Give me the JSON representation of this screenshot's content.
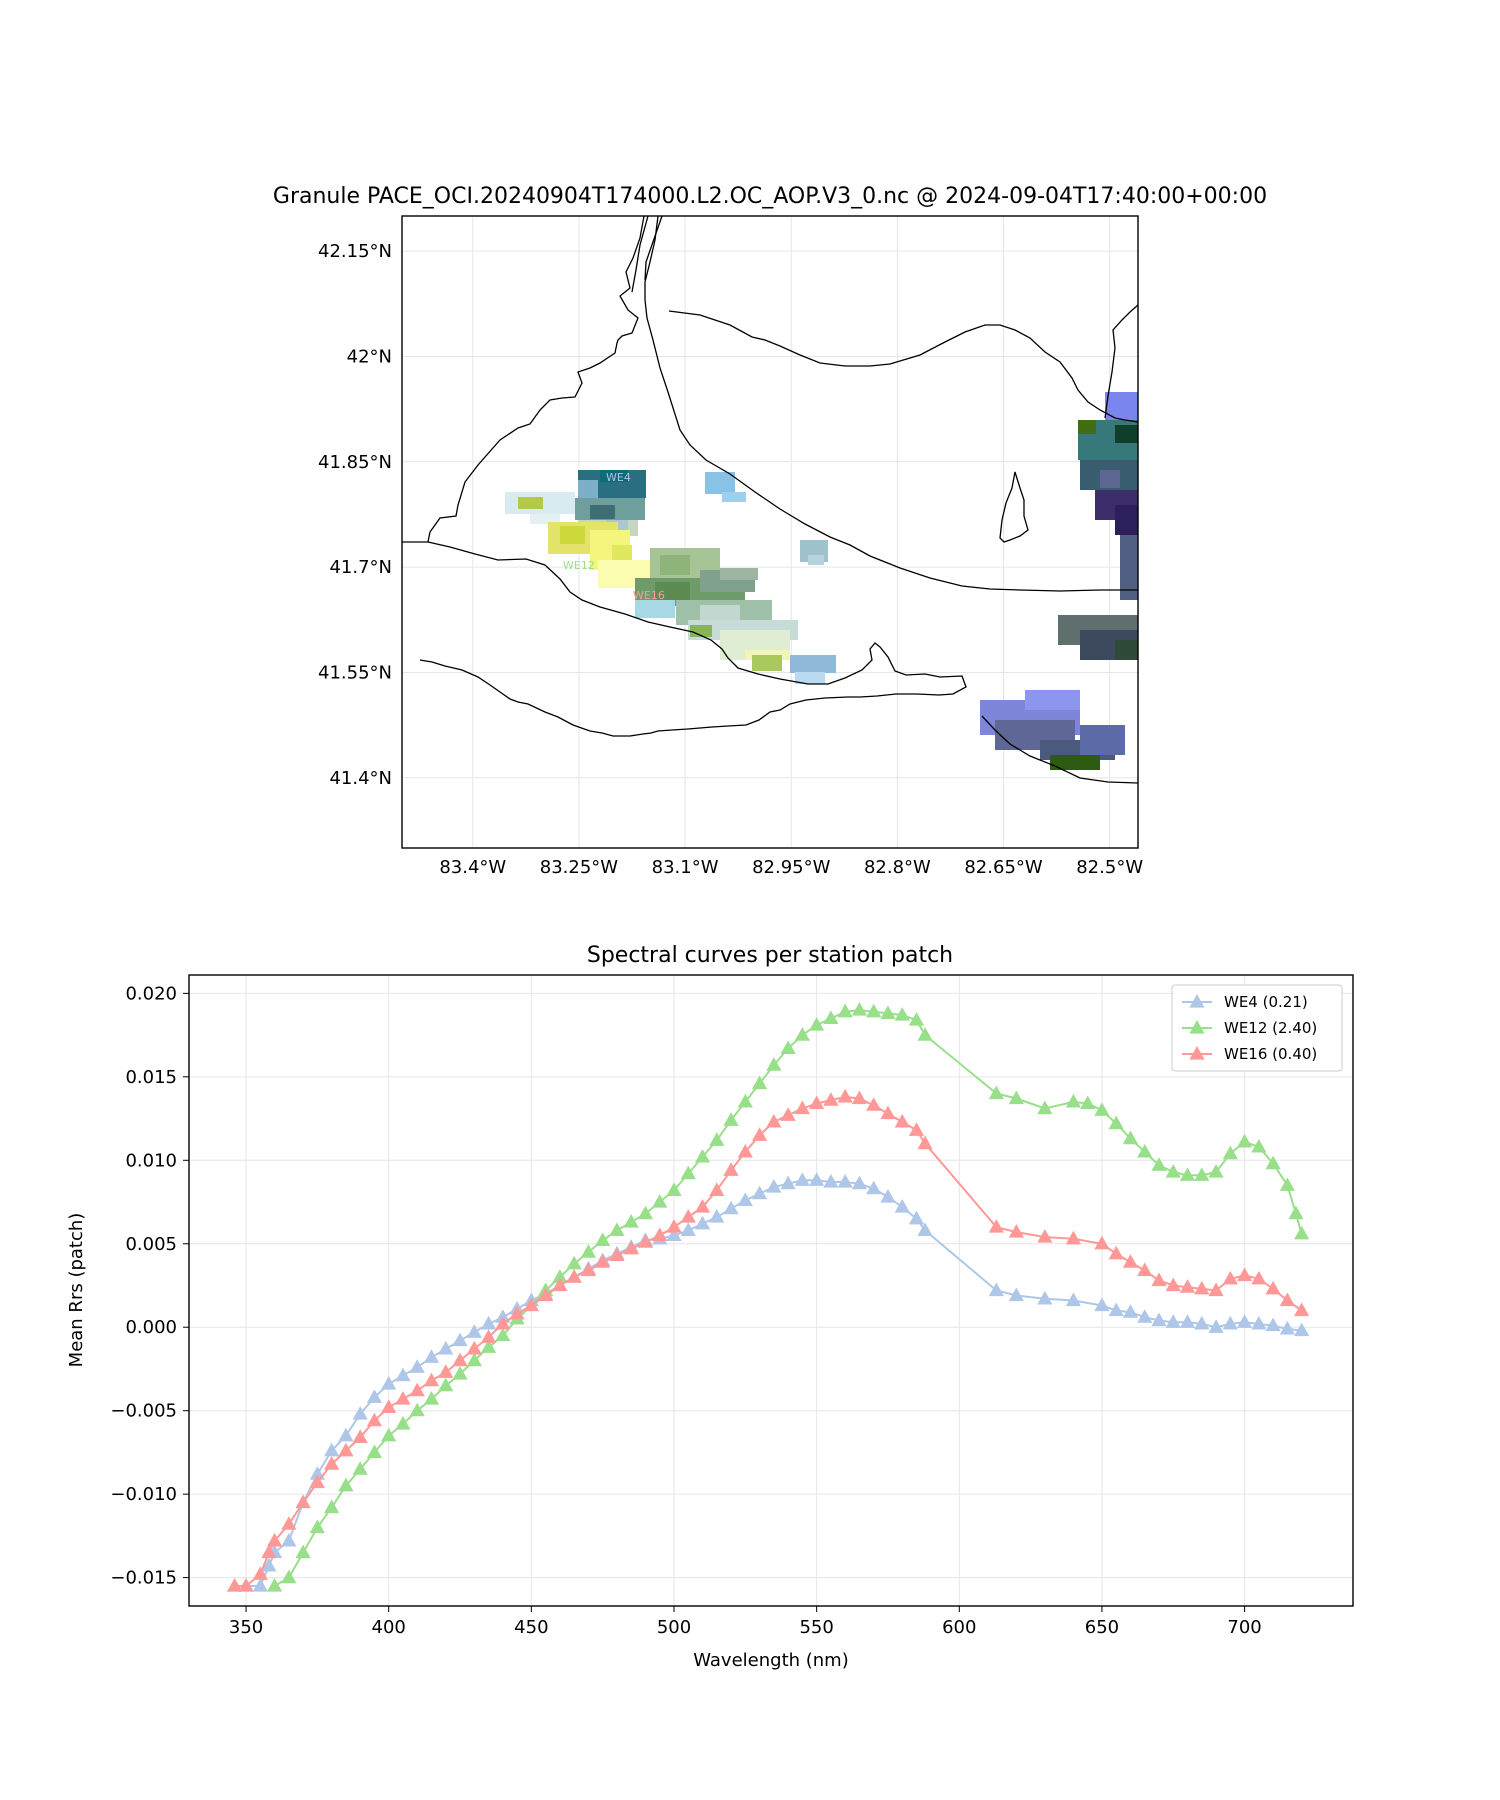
{
  "chart_data": [
    {
      "type": "map",
      "title": "Granule PACE_OCI.20240904T174000.L2.OC_AOP.V3_0.nc @ 2024-09-04T17:40:00+00:00",
      "xlim": [
        -83.5,
        -82.46
      ],
      "ylim": [
        41.3,
        42.2
      ],
      "x_ticks": [
        {
          "value": -83.4,
          "label": "83.4°W"
        },
        {
          "value": -83.25,
          "label": "83.25°W"
        },
        {
          "value": -83.1,
          "label": "83.1°W"
        },
        {
          "value": -82.95,
          "label": "82.95°W"
        },
        {
          "value": -82.8,
          "label": "82.8°W"
        },
        {
          "value": -82.65,
          "label": "82.65°W"
        },
        {
          "value": -82.5,
          "label": "82.5°W"
        }
      ],
      "y_ticks": [
        {
          "value": 42.15,
          "label": "42.15°N"
        },
        {
          "value": 42.0,
          "label": "42°N"
        },
        {
          "value": 41.85,
          "label": "41.85°N"
        },
        {
          "value": 41.7,
          "label": "41.7°N"
        },
        {
          "value": 41.55,
          "label": "41.55°N"
        },
        {
          "value": 41.4,
          "label": "41.4°N"
        }
      ],
      "grid": true,
      "stations": [
        {
          "name": "WE4",
          "lon": -83.22,
          "lat": 41.827,
          "color": "#aec7e8"
        },
        {
          "name": "WE12",
          "lon": -83.25,
          "lat": 41.702,
          "color": "#98df8a"
        },
        {
          "name": "WE16",
          "lon": -83.15,
          "lat": 41.66,
          "color": "#ff9896"
        }
      ]
    },
    {
      "type": "line",
      "title": "Spectral curves per station patch",
      "xlabel": "Wavelength (nm)",
      "ylabel": "Mean Rrs (patch)",
      "xlim": [
        330,
        738
      ],
      "ylim": [
        -0.0167,
        0.0211
      ],
      "x_ticks": [
        350,
        400,
        450,
        500,
        550,
        600,
        650,
        700
      ],
      "y_ticks": [
        {
          "value": 0.02,
          "label": "0.020"
        },
        {
          "value": 0.015,
          "label": "0.015"
        },
        {
          "value": 0.01,
          "label": "0.010"
        },
        {
          "value": 0.005,
          "label": "0.005"
        },
        {
          "value": 0.0,
          "label": "0.000"
        },
        {
          "value": -0.005,
          "label": "−0.005"
        },
        {
          "value": -0.01,
          "label": "−0.010"
        },
        {
          "value": -0.015,
          "label": "−0.015"
        }
      ],
      "grid": true,
      "legend_position": "top-right",
      "series": [
        {
          "name": "WE4 (0.21)",
          "color": "#aec7e8",
          "marker": "triangle",
          "points": [
            [
              346,
              -0.0155
            ],
            [
              350,
              -0.0155
            ],
            [
              355,
              -0.0155
            ],
            [
              358,
              -0.0143
            ],
            [
              360,
              -0.0135
            ],
            [
              365,
              -0.0128
            ],
            [
              370,
              -0.0105
            ],
            [
              375,
              -0.0088
            ],
            [
              380,
              -0.0074
            ],
            [
              385,
              -0.0065
            ],
            [
              390,
              -0.0052
            ],
            [
              395,
              -0.0042
            ],
            [
              400,
              -0.0034
            ],
            [
              405,
              -0.0029
            ],
            [
              410,
              -0.0024
            ],
            [
              415,
              -0.0018
            ],
            [
              420,
              -0.0013
            ],
            [
              425,
              -0.0008
            ],
            [
              430,
              -0.0003
            ],
            [
              435,
              0.0002
            ],
            [
              440,
              0.0006
            ],
            [
              445,
              0.0011
            ],
            [
              450,
              0.0016
            ],
            [
              455,
              0.002
            ],
            [
              460,
              0.0025
            ],
            [
              465,
              0.003
            ],
            [
              470,
              0.0035
            ],
            [
              475,
              0.004
            ],
            [
              480,
              0.0044
            ],
            [
              485,
              0.0048
            ],
            [
              490,
              0.0052
            ],
            [
              495,
              0.0053
            ],
            [
              500,
              0.0055
            ],
            [
              505,
              0.0058
            ],
            [
              510,
              0.0062
            ],
            [
              515,
              0.0066
            ],
            [
              520,
              0.0071
            ],
            [
              525,
              0.0076
            ],
            [
              530,
              0.008
            ],
            [
              535,
              0.0084
            ],
            [
              540,
              0.0086
            ],
            [
              545,
              0.0088
            ],
            [
              550,
              0.0088
            ],
            [
              555,
              0.0087
            ],
            [
              560,
              0.0087
            ],
            [
              565,
              0.0086
            ],
            [
              570,
              0.0083
            ],
            [
              575,
              0.0078
            ],
            [
              580,
              0.0072
            ],
            [
              585,
              0.0065
            ],
            [
              588,
              0.0058
            ],
            [
              613,
              0.0022
            ],
            [
              620,
              0.0019
            ],
            [
              630,
              0.0017
            ],
            [
              640,
              0.0016
            ],
            [
              650,
              0.0013
            ],
            [
              655,
              0.001
            ],
            [
              660,
              0.0009
            ],
            [
              665,
              0.0006
            ],
            [
              670,
              0.0004
            ],
            [
              675,
              0.0003
            ],
            [
              680,
              0.0003
            ],
            [
              685,
              0.0002
            ],
            [
              690,
              0.0
            ],
            [
              695,
              0.0002
            ],
            [
              700,
              0.0003
            ],
            [
              705,
              0.0002
            ],
            [
              710,
              0.0001
            ],
            [
              715,
              -0.0001
            ],
            [
              720,
              -0.0002
            ]
          ]
        },
        {
          "name": "WE12 (2.40)",
          "color": "#98df8a",
          "marker": "triangle",
          "points": [
            [
              360,
              -0.0155
            ],
            [
              365,
              -0.015
            ],
            [
              370,
              -0.0135
            ],
            [
              375,
              -0.012
            ],
            [
              380,
              -0.0108
            ],
            [
              385,
              -0.0095
            ],
            [
              390,
              -0.0085
            ],
            [
              395,
              -0.0075
            ],
            [
              400,
              -0.0065
            ],
            [
              405,
              -0.0058
            ],
            [
              410,
              -0.005
            ],
            [
              415,
              -0.0043
            ],
            [
              420,
              -0.0035
            ],
            [
              425,
              -0.0028
            ],
            [
              430,
              -0.002
            ],
            [
              435,
              -0.0012
            ],
            [
              440,
              -0.0005
            ],
            [
              445,
              0.0005
            ],
            [
              450,
              0.0013
            ],
            [
              455,
              0.0022
            ],
            [
              460,
              0.003
            ],
            [
              465,
              0.0038
            ],
            [
              470,
              0.0045
            ],
            [
              475,
              0.0052
            ],
            [
              480,
              0.0058
            ],
            [
              485,
              0.0063
            ],
            [
              490,
              0.0068
            ],
            [
              495,
              0.0075
            ],
            [
              500,
              0.0082
            ],
            [
              505,
              0.0092
            ],
            [
              510,
              0.0102
            ],
            [
              515,
              0.0112
            ],
            [
              520,
              0.0124
            ],
            [
              525,
              0.0135
            ],
            [
              530,
              0.0146
            ],
            [
              535,
              0.0157
            ],
            [
              540,
              0.0167
            ],
            [
              545,
              0.0175
            ],
            [
              550,
              0.0181
            ],
            [
              555,
              0.0185
            ],
            [
              560,
              0.0189
            ],
            [
              565,
              0.019
            ],
            [
              570,
              0.0189
            ],
            [
              575,
              0.0188
            ],
            [
              580,
              0.0187
            ],
            [
              585,
              0.0184
            ],
            [
              588,
              0.0175
            ],
            [
              613,
              0.014
            ],
            [
              620,
              0.0137
            ],
            [
              630,
              0.0131
            ],
            [
              640,
              0.0135
            ],
            [
              645,
              0.0134
            ],
            [
              650,
              0.013
            ],
            [
              655,
              0.0122
            ],
            [
              660,
              0.0113
            ],
            [
              665,
              0.0105
            ],
            [
              670,
              0.0097
            ],
            [
              675,
              0.0093
            ],
            [
              680,
              0.0091
            ],
            [
              685,
              0.0091
            ],
            [
              690,
              0.0093
            ],
            [
              695,
              0.0104
            ],
            [
              700,
              0.0111
            ],
            [
              705,
              0.0108
            ],
            [
              710,
              0.0098
            ],
            [
              715,
              0.0085
            ],
            [
              718,
              0.0068
            ],
            [
              720,
              0.0056
            ]
          ]
        },
        {
          "name": "WE16 (0.40)",
          "color": "#ff9896",
          "marker": "triangle",
          "points": [
            [
              346,
              -0.0155
            ],
            [
              350,
              -0.0155
            ],
            [
              355,
              -0.0148
            ],
            [
              358,
              -0.0135
            ],
            [
              360,
              -0.0128
            ],
            [
              365,
              -0.0118
            ],
            [
              370,
              -0.0105
            ],
            [
              375,
              -0.0093
            ],
            [
              380,
              -0.0082
            ],
            [
              385,
              -0.0074
            ],
            [
              390,
              -0.0066
            ],
            [
              395,
              -0.0056
            ],
            [
              400,
              -0.0048
            ],
            [
              405,
              -0.0043
            ],
            [
              410,
              -0.0038
            ],
            [
              415,
              -0.0032
            ],
            [
              420,
              -0.0027
            ],
            [
              425,
              -0.002
            ],
            [
              430,
              -0.0013
            ],
            [
              435,
              -0.0006
            ],
            [
              440,
              0.0002
            ],
            [
              445,
              0.0008
            ],
            [
              450,
              0.0013
            ],
            [
              455,
              0.0019
            ],
            [
              460,
              0.0025
            ],
            [
              465,
              0.003
            ],
            [
              470,
              0.0034
            ],
            [
              475,
              0.0039
            ],
            [
              480,
              0.0043
            ],
            [
              485,
              0.0047
            ],
            [
              490,
              0.0051
            ],
            [
              495,
              0.0055
            ],
            [
              500,
              0.006
            ],
            [
              505,
              0.0066
            ],
            [
              510,
              0.0072
            ],
            [
              515,
              0.0082
            ],
            [
              520,
              0.0094
            ],
            [
              525,
              0.0105
            ],
            [
              530,
              0.0115
            ],
            [
              535,
              0.0123
            ],
            [
              540,
              0.0127
            ],
            [
              545,
              0.0131
            ],
            [
              550,
              0.0134
            ],
            [
              555,
              0.0136
            ],
            [
              560,
              0.0138
            ],
            [
              565,
              0.0137
            ],
            [
              570,
              0.0133
            ],
            [
              575,
              0.0128
            ],
            [
              580,
              0.0123
            ],
            [
              585,
              0.0118
            ],
            [
              588,
              0.011
            ],
            [
              613,
              0.006
            ],
            [
              620,
              0.0057
            ],
            [
              630,
              0.0054
            ],
            [
              640,
              0.0053
            ],
            [
              650,
              0.005
            ],
            [
              655,
              0.0044
            ],
            [
              660,
              0.0039
            ],
            [
              665,
              0.0034
            ],
            [
              670,
              0.0028
            ],
            [
              675,
              0.0025
            ],
            [
              680,
              0.0024
            ],
            [
              685,
              0.0023
            ],
            [
              690,
              0.0022
            ],
            [
              695,
              0.0029
            ],
            [
              700,
              0.0031
            ],
            [
              705,
              0.0029
            ],
            [
              710,
              0.0023
            ],
            [
              715,
              0.0016
            ],
            [
              720,
              0.001
            ]
          ]
        }
      ]
    }
  ]
}
